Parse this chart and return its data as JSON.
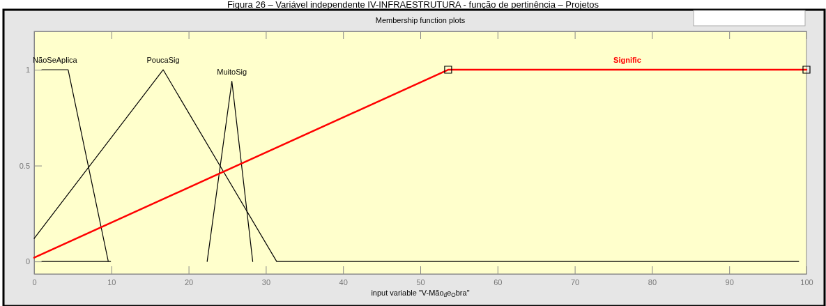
{
  "chart_data": {
    "type": "line",
    "title": "Figura 26 – Variável independente IV-INFRAESTRUTURA - função de pertinência – Projetos",
    "subtitle": "Membership function plots",
    "xlabel": "input variable \"V-Mão$_{d}$e$_{O}$bra\"",
    "xlim": [
      0,
      100
    ],
    "xticks": [
      0,
      10,
      20,
      30,
      40,
      50,
      60,
      70,
      80,
      90,
      100
    ],
    "ylim": [
      -0.065,
      1.2
    ],
    "yticks": [
      0,
      0.5,
      1
    ],
    "grid": false,
    "legend": false,
    "marker": "none",
    "line_style": "solid",
    "series": [
      {
        "name": "NãoSeAplica",
        "color": "#000000",
        "x": [
          1,
          4.4,
          9.6,
          9.9,
          1
        ],
        "values": [
          1,
          1,
          0,
          0,
          0
        ]
      },
      {
        "name": "PoucaSig",
        "color": "#000000",
        "x": [
          0,
          16.7,
          31.4,
          99
        ],
        "values": [
          0.12,
          1,
          0,
          0
        ]
      },
      {
        "name": "MuitoSig",
        "color": "#000000",
        "x": [
          22.4,
          25.6,
          28.3
        ],
        "values": [
          0,
          0.94,
          0
        ]
      },
      {
        "name": "Signific",
        "color": "#ff0000",
        "x": [
          0,
          53.6,
          100
        ],
        "values": [
          0.02,
          1,
          1
        ]
      },
      {
        "type": "scatter",
        "color": "#000000",
        "marker": "square",
        "x": [
          53.6,
          100
        ],
        "values": [
          1,
          1
        ]
      }
    ]
  }
}
